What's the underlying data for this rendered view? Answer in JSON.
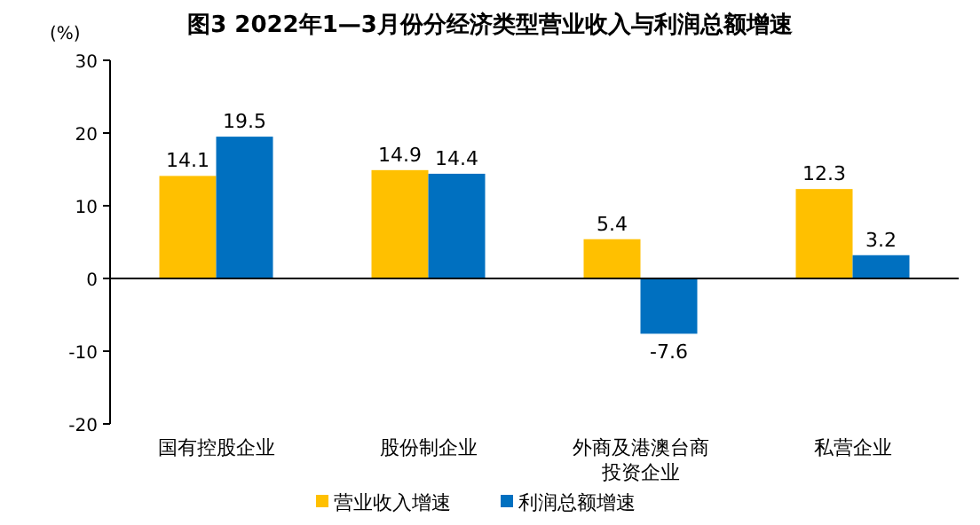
{
  "chart_data": {
    "type": "bar",
    "title": "图3 2022年1—3月份分经济类型营业收入与利润总额增速",
    "ylabel": "(%)",
    "categories": [
      "国有控股企业",
      "股份制企业",
      "外商及港澳台商投资企业",
      "私营企业"
    ],
    "series": [
      {
        "name": "营业收入增速",
        "color": "#ffc000",
        "values": [
          14.1,
          14.9,
          5.4,
          12.3
        ]
      },
      {
        "name": "利润总额增速",
        "color": "#0070c0",
        "values": [
          19.5,
          14.4,
          -7.6,
          3.2
        ]
      }
    ],
    "ylim": [
      -20,
      30
    ],
    "yticks": [
      -20,
      -10,
      0,
      10,
      20,
      30
    ],
    "data_labels": true,
    "legend": "bottom"
  }
}
